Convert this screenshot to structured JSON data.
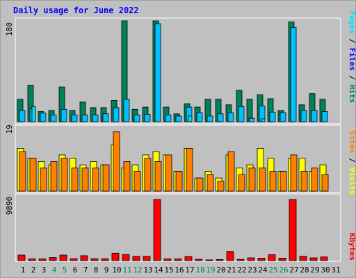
{
  "title": "Daily usage for June 2022",
  "chart_data": [
    {
      "type": "bar",
      "panel": "hits-files-pages",
      "ylabel_parts": [
        "Pages",
        "Files",
        "Hits"
      ],
      "ymax_label": "180",
      "ylim": [
        0,
        180
      ],
      "categories": [
        "1",
        "2",
        "3",
        "4",
        "5",
        "6",
        "7",
        "8",
        "9",
        "10",
        "11",
        "12",
        "13",
        "14",
        "15",
        "16",
        "17",
        "18",
        "19",
        "20",
        "21",
        "22",
        "23",
        "24",
        "25",
        "26",
        "27",
        "28",
        "29",
        "30",
        "31"
      ],
      "series": [
        {
          "name": "Hits",
          "values": [
            40,
            65,
            18,
            20,
            62,
            20,
            35,
            25,
            25,
            38,
            180,
            22,
            26,
            180,
            26,
            14,
            32,
            26,
            40,
            40,
            30,
            56,
            40,
            48,
            41,
            20,
            178,
            30,
            50,
            40,
            0
          ]
        },
        {
          "name": "Files",
          "values": [
            20,
            23,
            15,
            12,
            22,
            12,
            12,
            12,
            14,
            25,
            40,
            12,
            13,
            175,
            12,
            10,
            26,
            16,
            10,
            14,
            16,
            27,
            6,
            28,
            17,
            16,
            168,
            20,
            20,
            18,
            0
          ]
        },
        {
          "name": "Pages",
          "values": [
            0,
            27,
            0,
            0,
            0,
            0,
            0,
            0,
            0,
            0,
            0,
            0,
            0,
            0,
            0,
            0,
            10,
            0,
            0,
            0,
            0,
            0,
            0,
            5,
            0,
            0,
            0,
            0,
            0,
            0,
            0
          ]
        }
      ]
    },
    {
      "type": "bar",
      "panel": "visits-sites",
      "ylabel_parts": [
        "Sites",
        "Visits"
      ],
      "ymax_label": "19",
      "ylim": [
        0,
        19
      ],
      "categories": [
        "1",
        "2",
        "3",
        "4",
        "5",
        "6",
        "7",
        "8",
        "9",
        "10",
        "11",
        "12",
        "13",
        "14",
        "15",
        "16",
        "17",
        "18",
        "19",
        "20",
        "21",
        "22",
        "23",
        "24",
        "25",
        "26",
        "27",
        "28",
        "29",
        "30",
        "31"
      ],
      "series": [
        {
          "name": "Visits",
          "values": [
            13,
            10,
            9,
            8,
            11,
            10,
            8,
            9,
            8,
            14,
            7,
            8,
            11,
            12,
            11,
            6,
            13,
            4,
            6,
            4,
            11,
            7,
            8,
            13,
            10,
            6,
            10,
            10,
            6,
            8,
            0
          ]
        },
        {
          "name": "Sites",
          "values": [
            12,
            10,
            7,
            9,
            10,
            7,
            7,
            7,
            8,
            18,
            9,
            6,
            10,
            9,
            11,
            6,
            13,
            4,
            5,
            3,
            12,
            5,
            7,
            7,
            6,
            6,
            11,
            6,
            7,
            5,
            0
          ]
        }
      ]
    },
    {
      "type": "bar",
      "panel": "kbytes",
      "ylabel_parts": [
        "KBytes"
      ],
      "ymax_label": "9890",
      "ylim": [
        0,
        9890
      ],
      "categories": [
        "1",
        "2",
        "3",
        "4",
        "5",
        "6",
        "7",
        "8",
        "9",
        "10",
        "11",
        "12",
        "13",
        "14",
        "15",
        "16",
        "17",
        "18",
        "19",
        "20",
        "21",
        "22",
        "23",
        "24",
        "25",
        "26",
        "27",
        "28",
        "29",
        "30",
        "31"
      ],
      "series": [
        {
          "name": "KBytes",
          "values": [
            900,
            280,
            280,
            500,
            900,
            320,
            800,
            300,
            300,
            1200,
            1000,
            700,
            700,
            9890,
            280,
            280,
            660,
            220,
            120,
            180,
            1500,
            200,
            450,
            400,
            960,
            400,
            9890,
            700,
            450,
            600,
            0
          ]
        }
      ]
    }
  ],
  "day_label_colors": {
    "weekday": "#000000",
    "weekend": "#00805c",
    "weekend_days": [
      "4",
      "5",
      "11",
      "12",
      "18",
      "19",
      "25",
      "26"
    ]
  },
  "colors": {
    "frame": "#c0c0c0",
    "plot_bg": "#c0c0c0",
    "title": "#0000ff",
    "hits": "#00805c",
    "files": "#00c0ff",
    "pages": "#00e0ff",
    "visits": "#ffff00",
    "sites": "#ff8000",
    "kbytes": "#ff0000"
  }
}
